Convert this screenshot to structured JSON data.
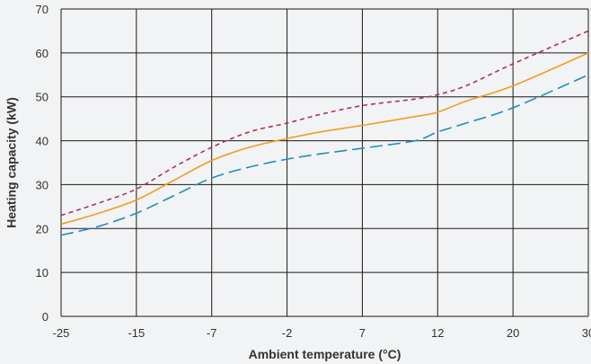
{
  "chart_data": {
    "type": "line",
    "xlabel": "Ambient temperature (°C)",
    "ylabel": "Heating capacity (kW)",
    "categories": [
      "-25",
      "-15",
      "-7",
      "-2",
      "7",
      "12",
      "20",
      "30"
    ],
    "x": [
      -25,
      -15,
      -7,
      -2,
      7,
      12,
      20,
      30
    ],
    "ylim": [
      0,
      70
    ],
    "yticks": [
      "0",
      "10",
      "20",
      "30",
      "40",
      "50",
      "60",
      "70"
    ],
    "grid": true,
    "series": [
      {
        "style": "dashed",
        "color": "#b03060",
        "x": [
          -25,
          -20,
          -15,
          -11,
          -7,
          -4.5,
          -2,
          2,
          7,
          10.5,
          12,
          15,
          20,
          30
        ],
        "values": [
          23,
          25.8,
          29,
          34,
          38.5,
          42,
          44,
          46,
          48,
          49.5,
          50.5,
          52.5,
          57.5,
          65
        ]
      },
      {
        "style": "solid",
        "color": "#f39c1f",
        "x": [
          -25,
          -20,
          -15,
          -11,
          -7,
          -4.5,
          -2,
          2,
          7,
          10.5,
          12,
          15,
          20,
          30
        ],
        "values": [
          21,
          23.5,
          26.5,
          31,
          35.5,
          38.5,
          40.5,
          42,
          43.5,
          45.5,
          46.5,
          49,
          52.5,
          60
        ]
      },
      {
        "style": "longdash",
        "color": "#1e8fb8",
        "x": [
          -25,
          -20,
          -15,
          -11,
          -7,
          -4.5,
          -2,
          2,
          7,
          10.5,
          12,
          15,
          20,
          30
        ],
        "values": [
          18.5,
          20.5,
          23.5,
          27.5,
          31.5,
          34,
          35.8,
          37,
          38.3,
          40,
          42,
          44,
          47.5,
          55
        ]
      }
    ]
  }
}
